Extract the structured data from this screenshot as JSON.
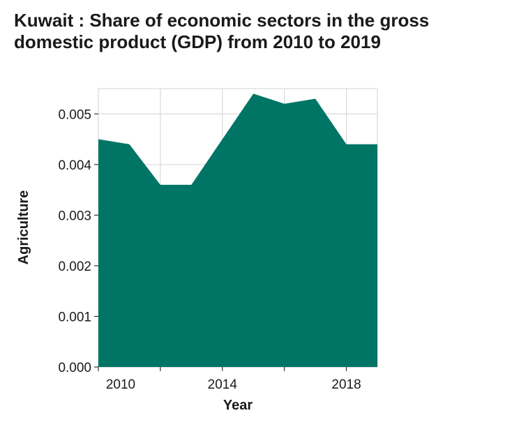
{
  "chart_data": {
    "type": "area",
    "title": "Kuwait : Share of economic sectors in the gross domestic product (GDP) from 2010 to 2019",
    "xlabel": "Year",
    "ylabel": "Agriculture",
    "x": [
      2010,
      2011,
      2012,
      2013,
      2014,
      2015,
      2016,
      2017,
      2018,
      2019
    ],
    "series": [
      {
        "values": [
          0.0045,
          0.0044,
          0.0036,
          0.0036,
          0.0045,
          0.0054,
          0.0052,
          0.0053,
          0.0044,
          0.0044
        ]
      }
    ],
    "xlim": [
      2010,
      2019
    ],
    "ylim": [
      0,
      0.0055
    ],
    "x_ticks": [
      "2010",
      "2014",
      "2018"
    ],
    "x_tick_values": [
      2010,
      2014,
      2018
    ],
    "x_gridlines": [
      2012,
      2014,
      2016,
      2018
    ],
    "y_ticks": [
      "0.000",
      "0.001",
      "0.002",
      "0.003",
      "0.004",
      "0.005"
    ],
    "y_tick_values": [
      0,
      0.001,
      0.002,
      0.003,
      0.004,
      0.005
    ],
    "grid": true,
    "fill_color": "#007566",
    "grid_color": "#d9d9d9"
  }
}
